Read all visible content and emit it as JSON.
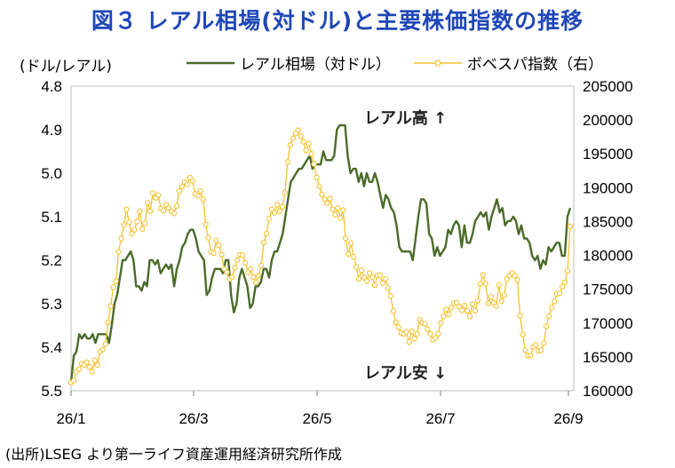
{
  "title": "図３ レアル相場(対ドル)と主要株価指数の推移",
  "left_unit": "(ドル/レアル)",
  "source": "(出所)LSEG より第一ライフ資産運用経済研究所作成",
  "chart_data": {
    "type": "line",
    "x_ticks": [
      "26/1",
      "26/3",
      "26/5",
      "26/7",
      "26/9"
    ],
    "y_left": {
      "min": 4.8,
      "max": 5.5,
      "inverted": true,
      "ticks": [
        "4.8",
        "4.9",
        "5.0",
        "5.1",
        "5.2",
        "5.3",
        "5.4",
        "5.5"
      ]
    },
    "y_right": {
      "min": 160000,
      "max": 205000,
      "ticks": [
        "205000",
        "200000",
        "195000",
        "190000",
        "185000",
        "180000",
        "175000",
        "170000",
        "165000",
        "160000"
      ]
    },
    "grid": false,
    "legend_position": "top",
    "annotations": {
      "up": "レアル高 ↑",
      "down": "レアル安 ↓"
    },
    "series": [
      {
        "name": "レアル相場（対ドル）",
        "axis": "left",
        "color": "#4a6b2a",
        "values": [
          5.48,
          5.42,
          5.41,
          5.37,
          5.38,
          5.37,
          5.38,
          5.38,
          5.37,
          5.39,
          5.37,
          5.37,
          5.37,
          5.37,
          5.39,
          5.35,
          5.3,
          5.28,
          5.24,
          5.2,
          5.2,
          5.19,
          5.18,
          5.2,
          5.26,
          5.26,
          5.27,
          5.25,
          5.26,
          5.2,
          5.2,
          5.21,
          5.2,
          5.23,
          5.22,
          5.21,
          5.22,
          5.21,
          5.26,
          5.22,
          5.2,
          5.17,
          5.16,
          5.14,
          5.13,
          5.13,
          5.15,
          5.18,
          5.19,
          5.2,
          5.28,
          5.27,
          5.24,
          5.22,
          5.22,
          5.22,
          5.23,
          5.2,
          5.2,
          5.28,
          5.32,
          5.3,
          5.24,
          5.22,
          5.24,
          5.26,
          5.31,
          5.3,
          5.26,
          5.26,
          5.25,
          5.22,
          5.22,
          5.24,
          5.2,
          5.18,
          5.18,
          5.16,
          5.14,
          5.1,
          5.06,
          5.02,
          5.01,
          5.0,
          4.99,
          4.99,
          4.98,
          4.97,
          4.96,
          4.99,
          4.98,
          4.98,
          4.98,
          4.95,
          4.97,
          4.97,
          4.97,
          4.96,
          4.9,
          4.89,
          4.89,
          4.89,
          4.96,
          5.0,
          4.99,
          4.99,
          5.02,
          5.0,
          5.03,
          5.0,
          5.02,
          5.02,
          5.0,
          5.02,
          5.05,
          5.08,
          5.05,
          5.06,
          5.08,
          5.09,
          5.12,
          5.17,
          5.18,
          5.18,
          5.18,
          5.18,
          5.2,
          5.15,
          5.1,
          5.06,
          5.06,
          5.07,
          5.14,
          5.15,
          5.19,
          5.17,
          5.19,
          5.18,
          5.17,
          5.13,
          5.14,
          5.12,
          5.11,
          5.12,
          5.17,
          5.12,
          5.16,
          5.16,
          5.14,
          5.11,
          5.1,
          5.09,
          5.1,
          5.09,
          5.13,
          5.1,
          5.08,
          5.06,
          5.09,
          5.08,
          5.12,
          5.11,
          5.11,
          5.1,
          5.11,
          5.14,
          5.12,
          5.15,
          5.15,
          5.16,
          5.19,
          5.2,
          5.19,
          5.22,
          5.2,
          5.21,
          5.17,
          5.18,
          5.17,
          5.16,
          5.16,
          5.19,
          5.19,
          5.1,
          5.08
        ]
      },
      {
        "name": "ボベスパ指数（右）",
        "axis": "right",
        "color": "#f5c231",
        "values": [
          161200,
          161500,
          162800,
          163200,
          164000,
          163800,
          164200,
          163500,
          162800,
          164500,
          163800,
          165800,
          166100,
          166900,
          170100,
          172500,
          175300,
          176200,
          180500,
          182500,
          184500,
          186800,
          184900,
          183200,
          183800,
          185000,
          186500,
          183900,
          184700,
          187800,
          186500,
          189200,
          188500,
          188900,
          186900,
          186600,
          187500,
          187000,
          186500,
          186200,
          187300,
          189500,
          190200,
          190800,
          190500,
          191500,
          191000,
          189100,
          188800,
          189500,
          188300,
          184600,
          182600,
          180500,
          180300,
          182200,
          181500,
          180100,
          178000,
          177500,
          176500,
          176800,
          178200,
          179300,
          180100,
          180000,
          178900,
          177500,
          178000,
          176800,
          176000,
          177000,
          178500,
          181900,
          183200,
          185400,
          186800,
          186300,
          187500,
          186500,
          187200,
          189300,
          193800,
          196300,
          197300,
          198000,
          198500,
          197600,
          196800,
          195500,
          196500,
          195000,
          193500,
          191500,
          190200,
          189000,
          188300,
          187700,
          188400,
          186800,
          186000,
          187000,
          185500,
          186700,
          182500,
          180200,
          181800,
          179800,
          178300,
          176500,
          177800,
          176700,
          176200,
          177400,
          176800,
          175600,
          177000,
          177100,
          175900,
          176500,
          175200,
          174000,
          171800,
          170100,
          169400,
          168500,
          168400,
          168700,
          167200,
          168800,
          167700,
          168400,
          170500,
          170000,
          169900,
          169100,
          168400,
          167500,
          167800,
          168400,
          170000,
          171000,
          172000,
          171300,
          172300,
          172900,
          173000,
          172400,
          171900,
          172600,
          171800,
          171000,
          172800,
          171800,
          173300,
          175800,
          177100,
          175800,
          172900,
          173900,
          173000,
          172500,
          175600,
          173200,
          174100,
          176500,
          177000,
          177400,
          177000,
          176400,
          171100,
          168300,
          166000,
          165200,
          165200,
          166500,
          166800,
          165900,
          166000,
          167000,
          169500,
          171000,
          172300,
          173200,
          174300,
          174400,
          175400,
          176000,
          177700,
          184300
        ]
      }
    ]
  }
}
